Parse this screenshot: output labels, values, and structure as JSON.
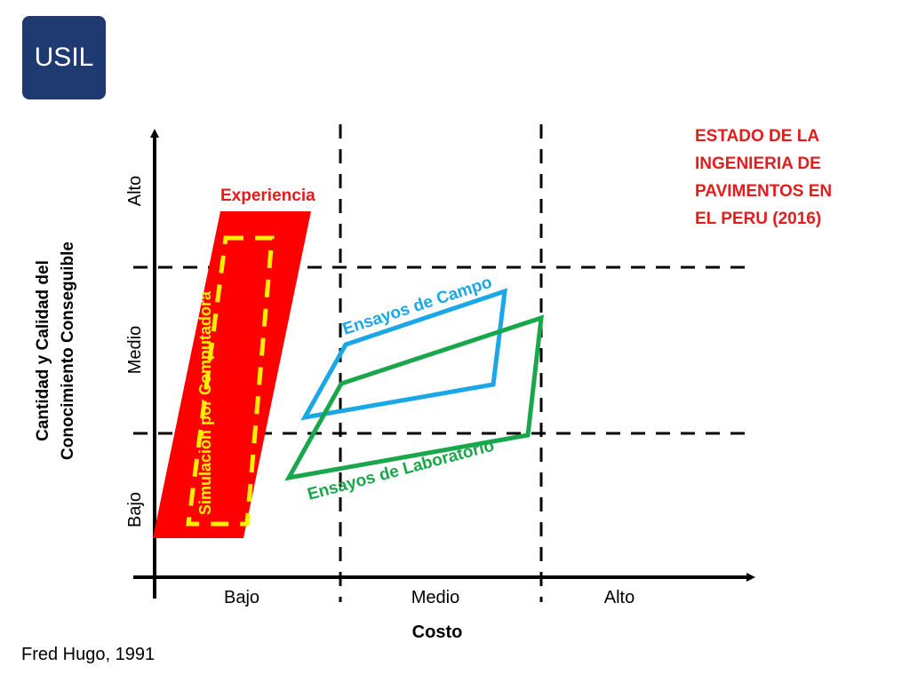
{
  "logo": {
    "text": "USIL",
    "bg_color": "#1e3a70",
    "fg_color": "#ffffff"
  },
  "title_lines": [
    "ESTADO DE LA",
    "INGENIERIA DE",
    "PAVIMENTOS EN",
    "EL PERU (2016)"
  ],
  "y_axis": {
    "label_lines": [
      "Cantidad y Calidad del",
      "Conocimiento Conseguible"
    ],
    "levels": [
      "Bajo",
      "Medio",
      "Alto"
    ]
  },
  "x_axis": {
    "label": "Costo",
    "levels": [
      "Bajo",
      "Medio",
      "Alto"
    ]
  },
  "regions": {
    "experiencia": "Experiencia",
    "simulacion": "Simulación por Computadora",
    "campo": "Ensayos de Campo",
    "laboratorio": "Ensayos de Laboratorio"
  },
  "citation": "Fred Hugo, 1991",
  "colors": {
    "red": "#ff0000",
    "title_red": "#e11d1d",
    "yellow": "#ffee00",
    "blue": "#1aa7e6",
    "green": "#1aa64b",
    "axis": "#000000"
  }
}
